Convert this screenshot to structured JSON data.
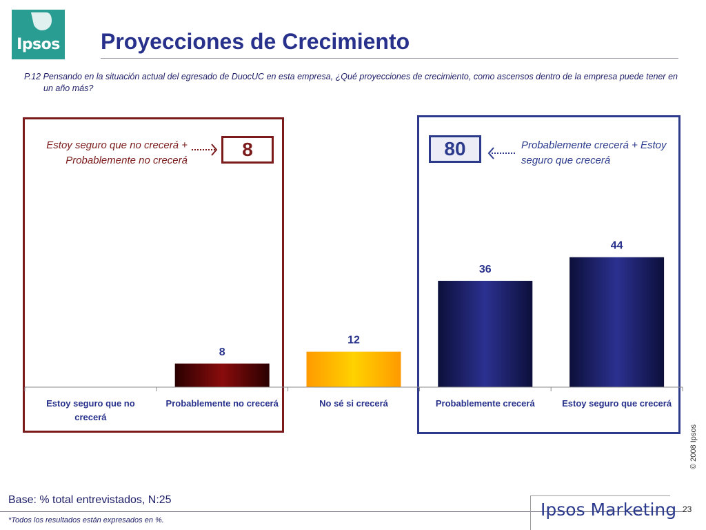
{
  "header": {
    "logo_text": "Ipsos",
    "title": "Proyecciones de Crecimiento",
    "question": "P.12 Pensando en la situación actual del egresado de DuocUC en esta empresa, ¿Qué proyecciones de crecimiento, como ascensos dentro de la empresa puede tener en un año más?"
  },
  "summary": {
    "negative_label": "Estoy seguro que no crecerá + Probablemente no crecerá",
    "negative_value": "8",
    "positive_label": "Probablemente crecerá + Estoy seguro que crecerá",
    "positive_value": "80"
  },
  "chart_data": {
    "type": "bar",
    "categories": [
      "Estoy seguro que no crecerá",
      "Probablemente no crecerá",
      "No sé si crecerá",
      "Probablemente crecerá",
      "Estoy seguro que crecerá"
    ],
    "values": [
      null,
      8,
      12,
      36,
      44
    ],
    "ylim": [
      0,
      50
    ],
    "grid": false,
    "colors": [
      "#7a0a0a",
      "#7a0a0a",
      "#ffc000",
      "#262a7a",
      "#262a7a"
    ]
  },
  "footer": {
    "base": "Base: % total entrevistados, N:25",
    "footnote": "*Todos los resultados están expresados en %.",
    "copyright": "© 2008 Ipsos",
    "brand": "Ipsos Marketing",
    "page_number": "23"
  }
}
